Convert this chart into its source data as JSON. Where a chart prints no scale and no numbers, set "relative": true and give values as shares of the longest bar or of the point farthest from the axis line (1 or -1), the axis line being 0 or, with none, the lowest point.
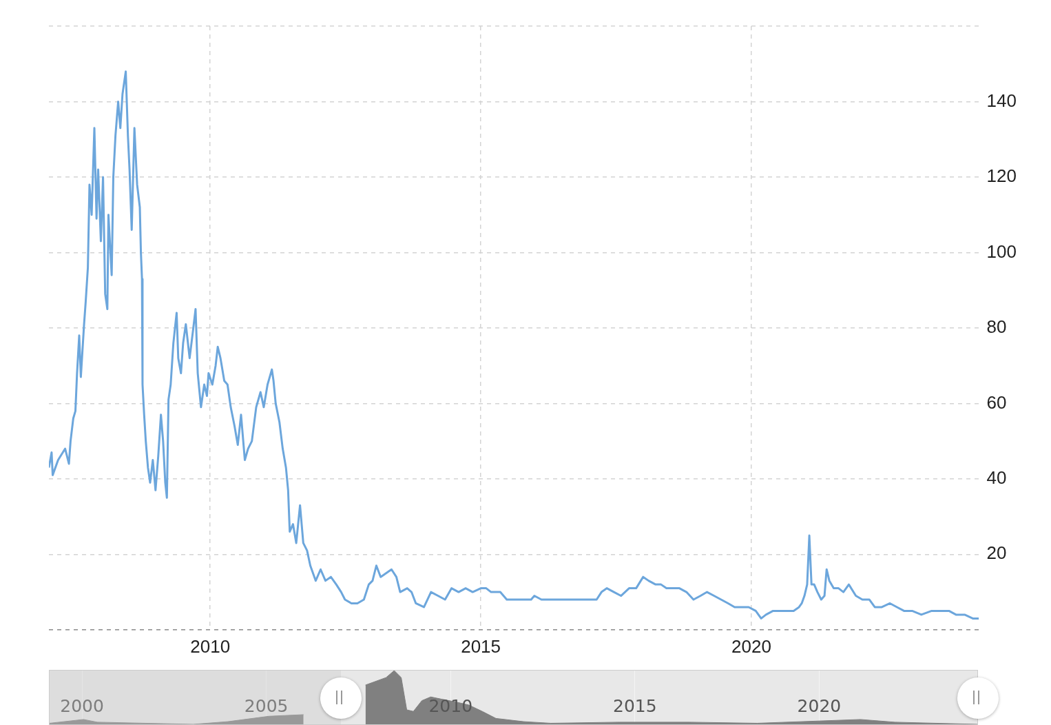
{
  "chart_data": [
    {
      "type": "line",
      "xlim": [
        2007.02,
        2024.22
      ],
      "ylim": [
        0,
        160
      ],
      "xticks": [
        2010,
        2015,
        2020
      ],
      "yticks": [
        {
          "value": 0,
          "label": null
        },
        20,
        40,
        60,
        80,
        100,
        120,
        140,
        {
          "value": 160,
          "label": null
        }
      ],
      "grid": true,
      "series": [
        {
          "color": "#6ca6dc",
          "x": [
            2007.02,
            2007.07,
            2007.09,
            2007.19,
            2007.32,
            2007.39,
            2007.42,
            2007.47,
            2007.51,
            2007.54,
            2007.58,
            2007.61,
            2007.67,
            2007.7,
            2007.74,
            2007.77,
            2007.81,
            2007.86,
            2007.9,
            2007.93,
            2007.98,
            2008.02,
            2008.06,
            2008.1,
            2008.12,
            2008.18,
            2008.21,
            2008.25,
            2008.3,
            2008.34,
            2008.38,
            2008.44,
            2008.48,
            2008.51,
            2008.55,
            2008.6,
            2008.65,
            2008.7,
            2008.72,
            2008.74,
            2008.75,
            2008.78,
            2008.81,
            2008.85,
            2008.89,
            2008.94,
            2008.99,
            2009.04,
            2009.09,
            2009.13,
            2009.17,
            2009.2,
            2009.23,
            2009.27,
            2009.32,
            2009.38,
            2009.41,
            2009.46,
            2009.5,
            2009.55,
            2009.62,
            2009.68,
            2009.73,
            2009.77,
            2009.83,
            2009.89,
            2009.94,
            2009.97,
            2010.04,
            2010.1,
            2010.14,
            2010.19,
            2010.26,
            2010.32,
            2010.38,
            2010.45,
            2010.51,
            2010.57,
            2010.64,
            2010.7,
            2010.77,
            2010.85,
            2010.93,
            2010.99,
            2011.06,
            2011.1,
            2011.14,
            2011.17,
            2011.21,
            2011.28,
            2011.34,
            2011.4,
            2011.44,
            2011.47,
            2011.53,
            2011.59,
            2011.66,
            2011.72,
            2011.79,
            2011.85,
            2011.95,
            2012.04,
            2012.13,
            2012.23,
            2012.33,
            2012.42,
            2012.49,
            2012.61,
            2012.72,
            2012.84,
            2012.93,
            2013.0,
            2013.07,
            2013.15,
            2013.25,
            2013.35,
            2013.44,
            2013.51,
            2013.64,
            2013.72,
            2013.8,
            2013.95,
            2014.08,
            2014.21,
            2014.34,
            2014.46,
            2014.59,
            2014.72,
            2014.85,
            2015.0,
            2015.1,
            2015.19,
            2015.36,
            2015.48,
            2015.61,
            2015.78,
            2015.93,
            2015.99,
            2016.12,
            2016.31,
            2016.51,
            2016.63,
            2016.76,
            2016.95,
            2017.14,
            2017.23,
            2017.33,
            2017.46,
            2017.59,
            2017.74,
            2017.87,
            2018.0,
            2018.1,
            2018.23,
            2018.33,
            2018.43,
            2018.55,
            2018.67,
            2018.8,
            2018.93,
            2019.06,
            2019.18,
            2019.31,
            2019.44,
            2019.57,
            2019.69,
            2019.82,
            2019.95,
            2020.08,
            2020.18,
            2020.27,
            2020.4,
            2020.52,
            2020.65,
            2020.78,
            2020.88,
            2020.93,
            2020.98,
            2021.03,
            2021.07,
            2021.11,
            2021.16,
            2021.22,
            2021.29,
            2021.35,
            2021.39,
            2021.44,
            2021.52,
            2021.61,
            2021.7,
            2021.8,
            2021.93,
            2022.05,
            2022.18,
            2022.28,
            2022.41,
            2022.56,
            2022.69,
            2022.82,
            2022.97,
            2023.14,
            2023.33,
            2023.52,
            2023.65,
            2023.78,
            2023.94,
            2024.09,
            2024.2
          ],
          "values": [
            43,
            47,
            41,
            45,
            48,
            44,
            50,
            56,
            58,
            68,
            78,
            67,
            81,
            87,
            96,
            118,
            110,
            133,
            109,
            122,
            103,
            120,
            89,
            85,
            110,
            94,
            120,
            131,
            140,
            133,
            142,
            148,
            131,
            122,
            106,
            133,
            118,
            112,
            100,
            93,
            65,
            57,
            50,
            43,
            39,
            45,
            37,
            46,
            57,
            50,
            39,
            35,
            61,
            65,
            76,
            84,
            72,
            68,
            76,
            81,
            72,
            79,
            85,
            68,
            59,
            65,
            62,
            68,
            65,
            70,
            75,
            72,
            66,
            65,
            59,
            54,
            49,
            57,
            45,
            48,
            50,
            59,
            63,
            59,
            65,
            67,
            69,
            66,
            60,
            55,
            48,
            43,
            37,
            26,
            28,
            23,
            33,
            23,
            21,
            17,
            13,
            16,
            13,
            14,
            12,
            10,
            8,
            7,
            7,
            8,
            12,
            13,
            17,
            14,
            15,
            16,
            14,
            10,
            11,
            10,
            7,
            6,
            10,
            9,
            8,
            11,
            10,
            11,
            10,
            11,
            11,
            10,
            10,
            8,
            8,
            8,
            8,
            9,
            8,
            8,
            8,
            8,
            8,
            8,
            8,
            10,
            11,
            10,
            9,
            11,
            11,
            14,
            13,
            12,
            12,
            11,
            11,
            11,
            10,
            8,
            9,
            10,
            9,
            8,
            7,
            6,
            6,
            6,
            5,
            3,
            4,
            5,
            5,
            5,
            5,
            6,
            7,
            9,
            12,
            25,
            12,
            12,
            10,
            8,
            9,
            16,
            13,
            11,
            11,
            10,
            12,
            9,
            8,
            8,
            6,
            6,
            7,
            6,
            5,
            5,
            4,
            5,
            5,
            5,
            4,
            4,
            3,
            3
          ]
        }
      ]
    },
    {
      "type": "area",
      "relative": true,
      "xlim": [
        1999.12,
        2024.29
      ],
      "xticks": [
        2000,
        2005,
        2010,
        2015,
        2020
      ],
      "tick_labels": "x",
      "grid": "x",
      "series": [
        {
          "color": "#808080",
          "x": [
            1999.12,
            2000.04,
            2000.41,
            2003.02,
            2003.96,
            2005.07,
            2006.01,
            2007.01,
            2007.31,
            2007.69,
            2008.25,
            2008.47,
            2008.66,
            2008.81,
            2008.99,
            2009.22,
            2009.46,
            2009.74,
            2010.11,
            2010.49,
            2010.86,
            2011.23,
            2011.98,
            2012.72,
            2014.59,
            2016.46,
            2018.32,
            2021.12,
            2022.05,
            2024.29
          ],
          "values": [
            0.02,
            0.09,
            0.04,
            0,
            0.05,
            0.15,
            0.18,
            null,
            null,
            0.73,
            0.87,
            1,
            0.87,
            0.27,
            0.24,
            0.44,
            0.51,
            0.47,
            0.42,
            0.36,
            0.24,
            0.11,
            0.05,
            0.02,
            0.04,
            0.04,
            0.02,
            0.09,
            0.04,
            0
          ]
        }
      ]
    }
  ]
}
